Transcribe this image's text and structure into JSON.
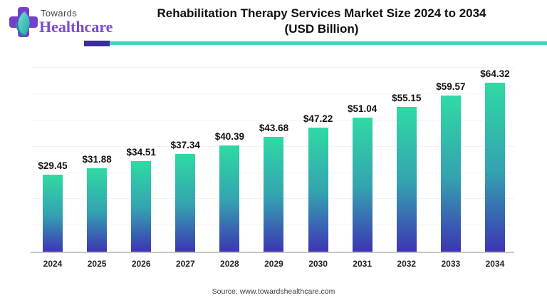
{
  "header": {
    "logo_line1": "Towards",
    "logo_line2": "Healthcare",
    "title_line1": "Rehabilitation Therapy Services Market Size 2024 to 2034",
    "title_line2": "(USD Billion)"
  },
  "chart_data": {
    "type": "bar",
    "title": "Rehabilitation Therapy Services Market Size 2024 to 2034 (USD Billion)",
    "categories": [
      "2024",
      "2025",
      "2026",
      "2027",
      "2028",
      "2029",
      "2030",
      "2031",
      "2032",
      "2033",
      "2034"
    ],
    "values": [
      29.45,
      31.88,
      34.51,
      37.34,
      40.39,
      43.68,
      47.22,
      51.04,
      55.15,
      59.57,
      64.32
    ],
    "value_labels": [
      "$29.45",
      "$31.88",
      "$34.51",
      "$37.34",
      "$40.39",
      "$43.68",
      "$47.22",
      "$51.04",
      "$55.15",
      "$59.57",
      "$64.32"
    ],
    "xlabel": "",
    "ylabel": "",
    "ylim": [
      0,
      72
    ],
    "gridline_step": 10,
    "grid": true,
    "legend": false
  },
  "footer": {
    "source": "Source: www.towardshealthcare.com"
  },
  "colors": {
    "bar_top": "#2fdaa4",
    "bar_mid": "#34a3b0",
    "bar_bottom": "#3d35b4",
    "underline_teal": "#45d3bc",
    "underline_purple": "#3a2d9f",
    "logo_purple": "#7142c9",
    "logo_text_purple": "#7b4ad8",
    "leaf_teal": "#3fc9c4",
    "axis_line": "#c4c4c4",
    "gridline": "#f3f3f3"
  }
}
